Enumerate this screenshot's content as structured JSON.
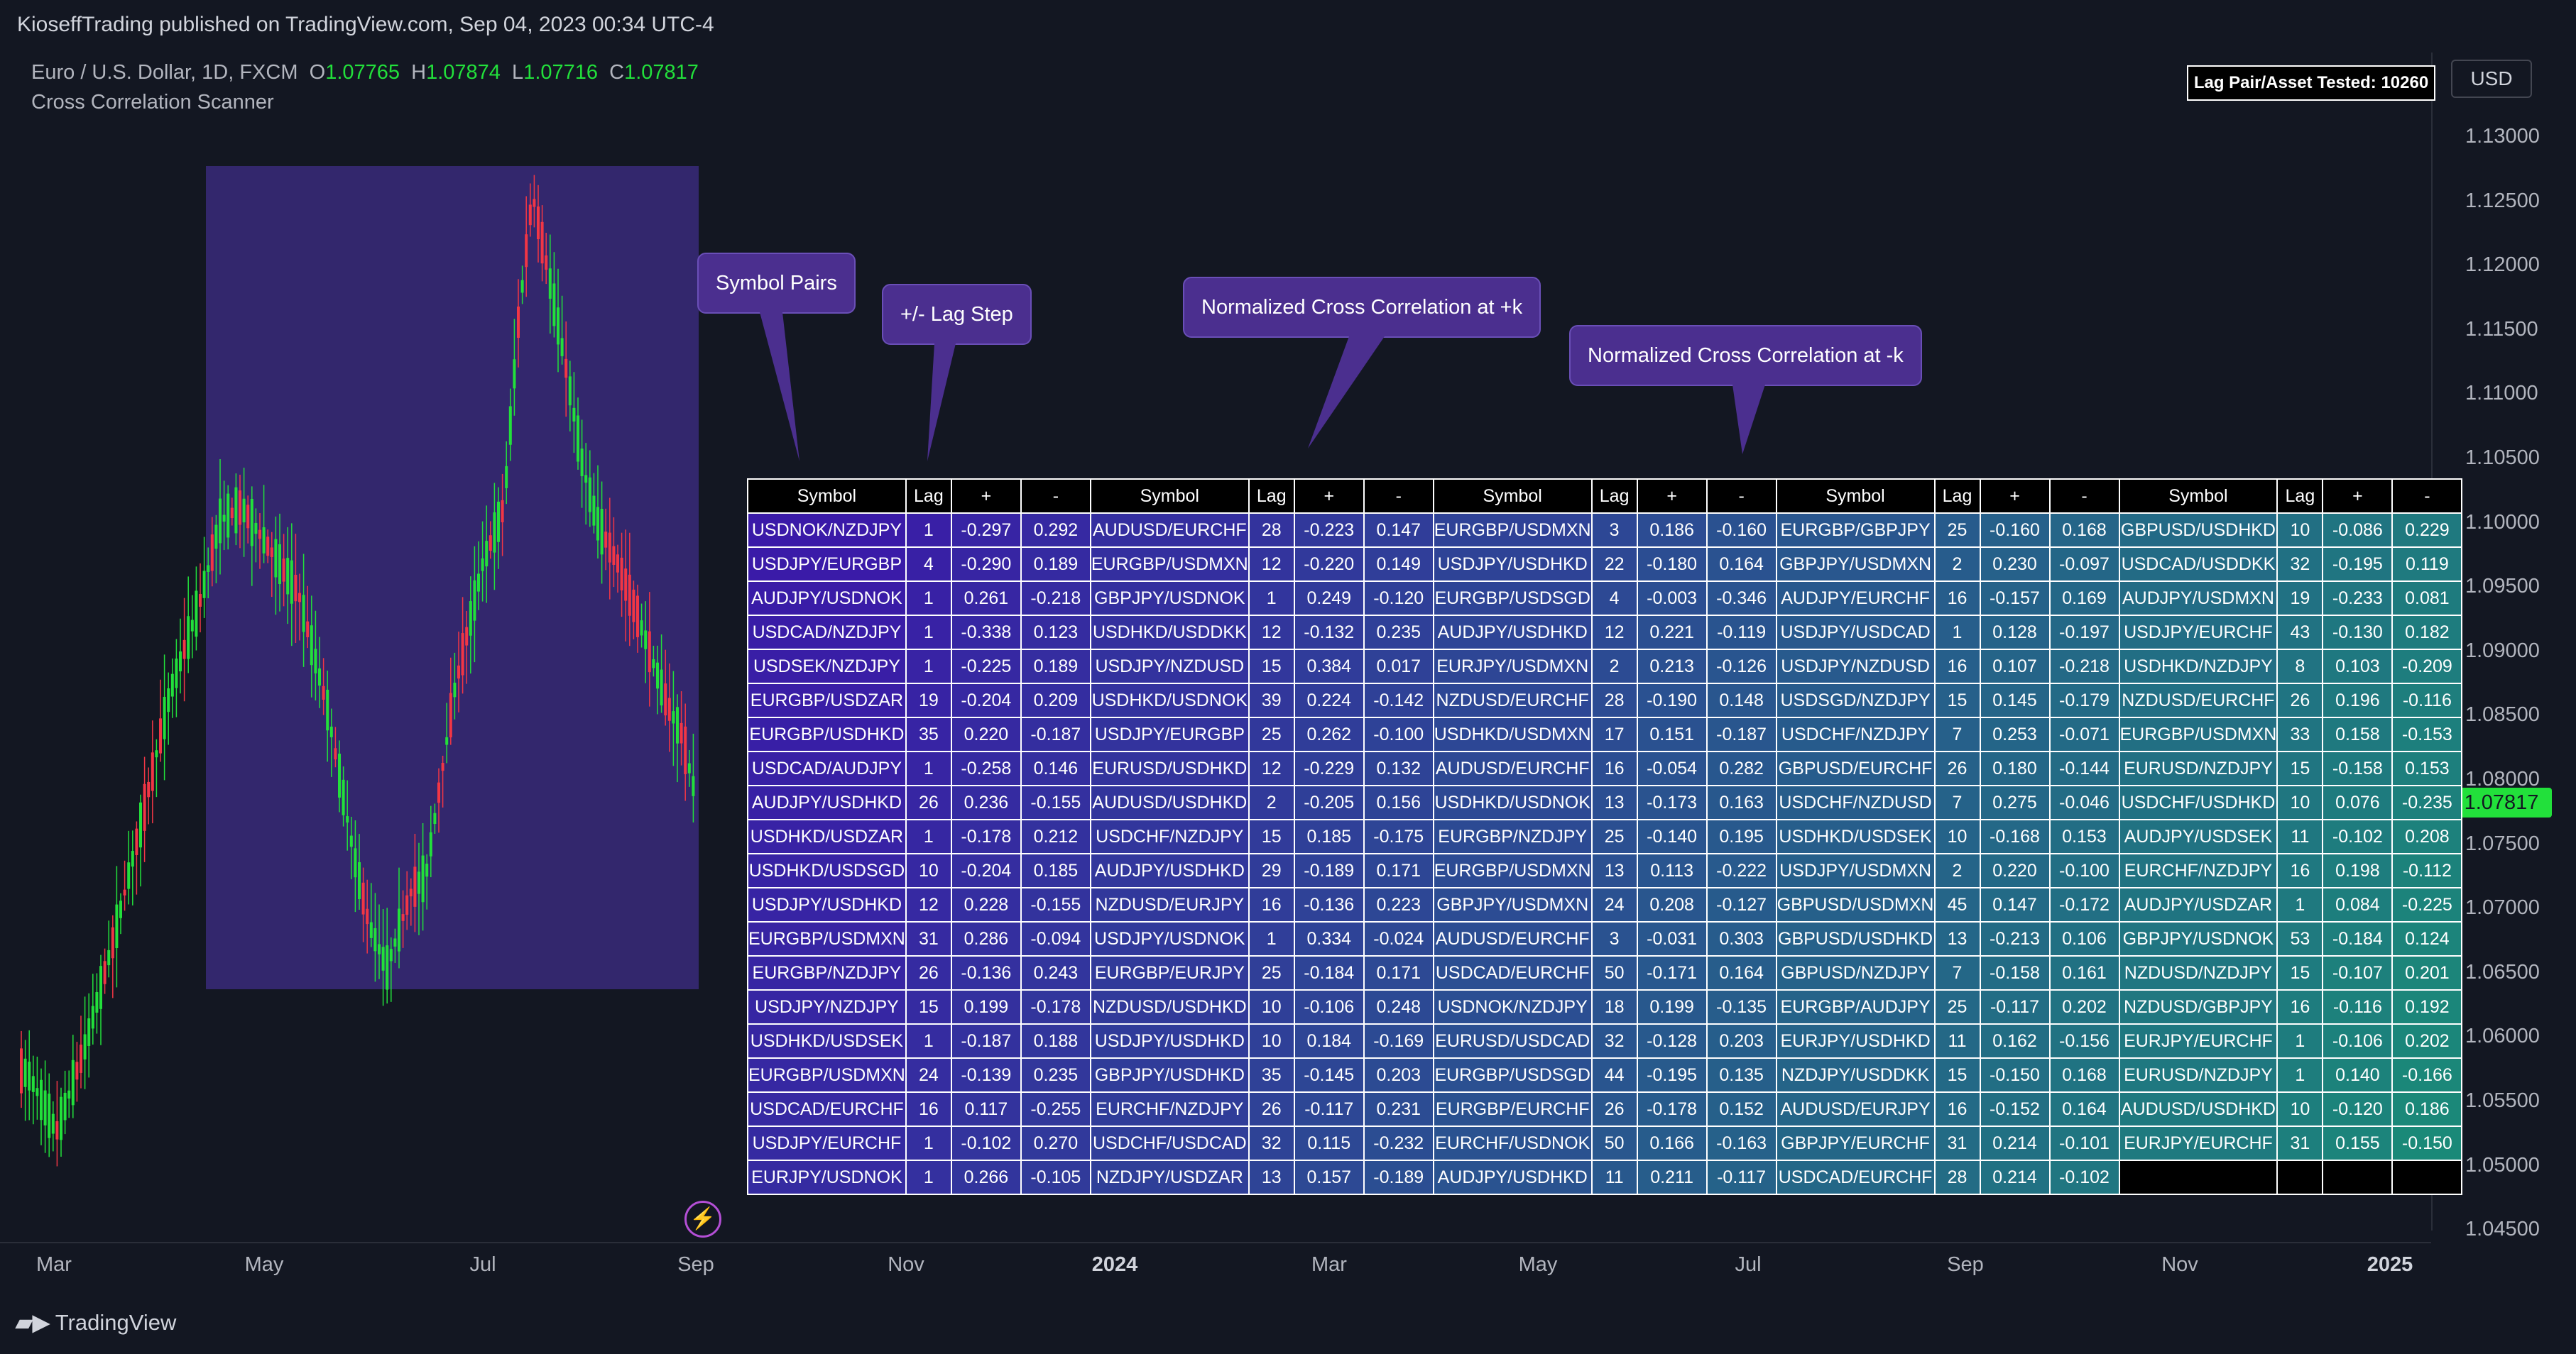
{
  "header": {
    "published": "KioseffTrading published on TradingView.com, Sep 04, 2023 00:34 UTC-4"
  },
  "legend": {
    "symbol": "Euro / U.S. Dollar, 1D, FXCM",
    "o_label": "O",
    "o": "1.07765",
    "h_label": "H",
    "h": "1.07874",
    "l_label": "L",
    "l": "1.07716",
    "c_label": "C",
    "c": "1.07817",
    "indicator": "Cross Correlation Scanner"
  },
  "price_axis": {
    "currency": "USD",
    "current_price": "1.07817",
    "labels": [
      "1.13000",
      "1.12500",
      "1.12000",
      "1.11500",
      "1.11000",
      "1.10500",
      "1.10000",
      "1.09500",
      "1.09000",
      "1.08500",
      "1.08000",
      "1.07500",
      "1.07000",
      "1.06500",
      "1.06000",
      "1.05500",
      "1.05000",
      "1.04500"
    ]
  },
  "time_axis": {
    "labels": [
      "Mar",
      "May",
      "Jul",
      "Sep",
      "Nov",
      "2024",
      "Mar",
      "May",
      "Jul",
      "Sep",
      "Nov",
      "2025"
    ],
    "bold": [
      "2024",
      "2025"
    ]
  },
  "footer": {
    "brand": "TradingView"
  },
  "lag_tested": "Lag Pair/Asset Tested: 10260",
  "callouts": {
    "symbol_pairs": "Symbol Pairs",
    "lag_step": "+/- Lag Step",
    "pos": "Normalized Cross Correlation at +k",
    "neg": "Normalized Cross Correlation at -k"
  },
  "colors": {
    "up_candle": "#22e03b",
    "down_candle": "#f23645",
    "highlight_box": "#3a2a7a",
    "callout": "#4b2f8f",
    "table_gradient": [
      "#3a1aa8",
      "#1a8a78"
    ]
  },
  "table": {
    "headers": [
      "Symbol",
      "Lag",
      "+",
      "-"
    ],
    "blocks": [
      [
        [
          "USDNOK/NZDJPY",
          "1",
          "-0.297",
          "0.292"
        ],
        [
          "USDJPY/EURGBP",
          "4",
          "-0.290",
          "0.189"
        ],
        [
          "AUDJPY/USDNOK",
          "1",
          "0.261",
          "-0.218"
        ],
        [
          "USDCAD/NZDJPY",
          "1",
          "-0.338",
          "0.123"
        ],
        [
          "USDSEK/NZDJPY",
          "1",
          "-0.225",
          "0.189"
        ],
        [
          "EURGBP/USDZAR",
          "19",
          "-0.204",
          "0.209"
        ],
        [
          "EURGBP/USDHKD",
          "35",
          "0.220",
          "-0.187"
        ],
        [
          "USDCAD/AUDJPY",
          "1",
          "-0.258",
          "0.146"
        ],
        [
          "AUDJPY/USDHKD",
          "26",
          "0.236",
          "-0.155"
        ],
        [
          "USDHKD/USDZAR",
          "1",
          "-0.178",
          "0.212"
        ],
        [
          "USDHKD/USDSGD",
          "10",
          "-0.204",
          "0.185"
        ],
        [
          "USDJPY/USDHKD",
          "12",
          "0.228",
          "-0.155"
        ],
        [
          "EURGBP/USDMXN",
          "31",
          "0.286",
          "-0.094"
        ],
        [
          "EURGBP/NZDJPY",
          "26",
          "-0.136",
          "0.243"
        ],
        [
          "USDJPY/NZDJPY",
          "15",
          "0.199",
          "-0.178"
        ],
        [
          "USDHKD/USDSEK",
          "1",
          "-0.187",
          "0.188"
        ],
        [
          "EURGBP/USDMXN",
          "24",
          "-0.139",
          "0.235"
        ],
        [
          "USDCAD/EURCHF",
          "16",
          "0.117",
          "-0.255"
        ],
        [
          "USDJPY/EURCHF",
          "1",
          "-0.102",
          "0.270"
        ],
        [
          "EURJPY/USDNOK",
          "1",
          "0.266",
          "-0.105"
        ]
      ],
      [
        [
          "AUDUSD/EURCHF",
          "28",
          "-0.223",
          "0.147"
        ],
        [
          "EURGBP/USDMXN",
          "12",
          "-0.220",
          "0.149"
        ],
        [
          "GBPJPY/USDNOK",
          "1",
          "0.249",
          "-0.120"
        ],
        [
          "USDHKD/USDDKK",
          "12",
          "-0.132",
          "0.235"
        ],
        [
          "USDJPY/NZDUSD",
          "15",
          "0.384",
          "0.017"
        ],
        [
          "USDHKD/USDNOK",
          "39",
          "0.224",
          "-0.142"
        ],
        [
          "USDJPY/EURGBP",
          "25",
          "0.262",
          "-0.100"
        ],
        [
          "EURUSD/USDHKD",
          "12",
          "-0.229",
          "0.132"
        ],
        [
          "AUDUSD/USDHKD",
          "2",
          "-0.205",
          "0.156"
        ],
        [
          "USDCHF/NZDJPY",
          "15",
          "0.185",
          "-0.175"
        ],
        [
          "AUDJPY/USDHKD",
          "29",
          "-0.189",
          "0.171"
        ],
        [
          "NZDUSD/EURJPY",
          "16",
          "-0.136",
          "0.223"
        ],
        [
          "USDJPY/USDNOK",
          "1",
          "0.334",
          "-0.024"
        ],
        [
          "EURGBP/EURJPY",
          "25",
          "-0.184",
          "0.171"
        ],
        [
          "NZDUSD/USDHKD",
          "10",
          "-0.106",
          "0.248"
        ],
        [
          "USDJPY/USDHKD",
          "10",
          "0.184",
          "-0.169"
        ],
        [
          "GBPJPY/USDHKD",
          "35",
          "-0.145",
          "0.203"
        ],
        [
          "EURCHF/NZDJPY",
          "26",
          "-0.117",
          "0.231"
        ],
        [
          "USDCHF/USDCAD",
          "32",
          "0.115",
          "-0.232"
        ],
        [
          "NZDJPY/USDZAR",
          "13",
          "0.157",
          "-0.189"
        ]
      ],
      [
        [
          "EURGBP/USDMXN",
          "3",
          "0.186",
          "-0.160"
        ],
        [
          "USDJPY/USDHKD",
          "22",
          "-0.180",
          "0.164"
        ],
        [
          "EURGBP/USDSGD",
          "4",
          "-0.003",
          "-0.346"
        ],
        [
          "AUDJPY/USDHKD",
          "12",
          "0.221",
          "-0.119"
        ],
        [
          "EURJPY/USDMXN",
          "2",
          "0.213",
          "-0.126"
        ],
        [
          "NZDUSD/EURCHF",
          "28",
          "-0.190",
          "0.148"
        ],
        [
          "USDHKD/USDMXN",
          "17",
          "0.151",
          "-0.187"
        ],
        [
          "AUDUSD/EURCHF",
          "16",
          "-0.054",
          "0.282"
        ],
        [
          "USDHKD/USDNOK",
          "13",
          "-0.173",
          "0.163"
        ],
        [
          "EURGBP/NZDJPY",
          "25",
          "-0.140",
          "0.195"
        ],
        [
          "EURGBP/USDMXN",
          "13",
          "0.113",
          "-0.222"
        ],
        [
          "GBPJPY/USDMXN",
          "24",
          "0.208",
          "-0.127"
        ],
        [
          "AUDUSD/EURCHF",
          "3",
          "-0.031",
          "0.303"
        ],
        [
          "USDCAD/EURCHF",
          "50",
          "-0.171",
          "0.164"
        ],
        [
          "USDNOK/NZDJPY",
          "18",
          "0.199",
          "-0.135"
        ],
        [
          "EURUSD/USDCAD",
          "32",
          "-0.128",
          "0.203"
        ],
        [
          "EURGBP/USDSGD",
          "44",
          "-0.195",
          "0.135"
        ],
        [
          "EURGBP/EURCHF",
          "26",
          "-0.178",
          "0.152"
        ],
        [
          "EURCHF/USDNOK",
          "50",
          "0.166",
          "-0.163"
        ],
        [
          "AUDJPY/USDHKD",
          "11",
          "0.211",
          "-0.117"
        ]
      ],
      [
        [
          "EURGBP/GBPJPY",
          "25",
          "-0.160",
          "0.168"
        ],
        [
          "GBPJPY/USDMXN",
          "2",
          "0.230",
          "-0.097"
        ],
        [
          "AUDJPY/EURCHF",
          "16",
          "-0.157",
          "0.169"
        ],
        [
          "USDJPY/USDCAD",
          "1",
          "0.128",
          "-0.197"
        ],
        [
          "USDJPY/NZDUSD",
          "16",
          "0.107",
          "-0.218"
        ],
        [
          "USDSGD/NZDJPY",
          "15",
          "0.145",
          "-0.179"
        ],
        [
          "USDCHF/NZDJPY",
          "7",
          "0.253",
          "-0.071"
        ],
        [
          "GBPUSD/EURCHF",
          "26",
          "0.180",
          "-0.144"
        ],
        [
          "USDCHF/NZDUSD",
          "7",
          "0.275",
          "-0.046"
        ],
        [
          "USDHKD/USDSEK",
          "10",
          "-0.168",
          "0.153"
        ],
        [
          "USDJPY/USDMXN",
          "2",
          "0.220",
          "-0.100"
        ],
        [
          "GBPUSD/USDMXN",
          "45",
          "0.147",
          "-0.172"
        ],
        [
          "GBPUSD/USDHKD",
          "13",
          "-0.213",
          "0.106"
        ],
        [
          "GBPUSD/NZDJPY",
          "7",
          "-0.158",
          "0.161"
        ],
        [
          "EURGBP/AUDJPY",
          "25",
          "-0.117",
          "0.202"
        ],
        [
          "EURJPY/USDHKD",
          "11",
          "0.162",
          "-0.156"
        ],
        [
          "NZDJPY/USDDKK",
          "15",
          "-0.150",
          "0.168"
        ],
        [
          "AUDUSD/EURJPY",
          "16",
          "-0.152",
          "0.164"
        ],
        [
          "GBPJPY/EURCHF",
          "31",
          "0.214",
          "-0.101"
        ],
        [
          "USDCAD/EURCHF",
          "28",
          "0.214",
          "-0.102"
        ]
      ],
      [
        [
          "GBPUSD/USDHKD",
          "10",
          "-0.086",
          "0.229"
        ],
        [
          "USDCAD/USDDKK",
          "32",
          "-0.195",
          "0.119"
        ],
        [
          "AUDJPY/USDMXN",
          "19",
          "-0.233",
          "0.081"
        ],
        [
          "USDJPY/EURCHF",
          "43",
          "-0.130",
          "0.182"
        ],
        [
          "USDHKD/NZDJPY",
          "8",
          "0.103",
          "-0.209"
        ],
        [
          "NZDUSD/EURCHF",
          "26",
          "0.196",
          "-0.116"
        ],
        [
          "EURGBP/USDMXN",
          "33",
          "0.158",
          "-0.153"
        ],
        [
          "EURUSD/NZDJPY",
          "15",
          "-0.158",
          "0.153"
        ],
        [
          "USDCHF/USDHKD",
          "10",
          "0.076",
          "-0.235"
        ],
        [
          "AUDJPY/USDSEK",
          "11",
          "-0.102",
          "0.208"
        ],
        [
          "EURCHF/NZDJPY",
          "16",
          "0.198",
          "-0.112"
        ],
        [
          "AUDJPY/USDZAR",
          "1",
          "0.084",
          "-0.225"
        ],
        [
          "GBPJPY/USDNOK",
          "53",
          "-0.184",
          "0.124"
        ],
        [
          "NZDUSD/NZDJPY",
          "15",
          "-0.107",
          "0.201"
        ],
        [
          "NZDUSD/GBPJPY",
          "16",
          "-0.116",
          "0.192"
        ],
        [
          "EURJPY/EURCHF",
          "1",
          "-0.106",
          "0.202"
        ],
        [
          "EURUSD/NZDJPY",
          "1",
          "0.140",
          "-0.166"
        ],
        [
          "AUDUSD/USDHKD",
          "10",
          "-0.120",
          "0.186"
        ],
        [
          "EURJPY/EURCHF",
          "31",
          "0.155",
          "-0.150"
        ]
      ]
    ]
  }
}
